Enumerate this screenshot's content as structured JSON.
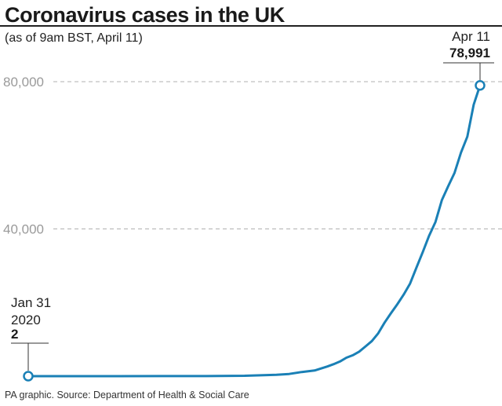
{
  "header": {
    "title": "Coronavirus cases in the UK",
    "subtitle": "(as of 9am BST, April 11)"
  },
  "footer": {
    "source": "PA graphic. Source: Department of Health & Social Care"
  },
  "annotations": {
    "start": {
      "date": "Jan 31",
      "year": "2020",
      "value": "2"
    },
    "end": {
      "date": "Apr 11",
      "value": "78,991"
    }
  },
  "colors": {
    "line": "#1a80b6",
    "grid": "#b0b0b0",
    "tick_text": "#9a9a9a"
  },
  "chart_data": {
    "type": "line",
    "title": "Coronavirus cases in the UK",
    "subtitle": "(as of 9am BST, April 11)",
    "xlabel": "",
    "ylabel": "",
    "ylim": [
      0,
      80000
    ],
    "yticks": [
      40000,
      80000
    ],
    "ytick_labels": [
      "40,000",
      "80,000"
    ],
    "grid": "horizontal dashed",
    "x_range": [
      "2020-01-31",
      "2020-04-11"
    ],
    "series": [
      {
        "x": [
          "2020-01-31",
          "2020-02-07",
          "2020-02-14",
          "2020-02-21",
          "2020-02-28",
          "2020-03-01",
          "2020-03-05",
          "2020-03-08",
          "2020-03-10",
          "2020-03-12",
          "2020-03-14",
          "2020-03-16",
          "2020-03-18",
          "2020-03-19",
          "2020-03-20",
          "2020-03-21",
          "2020-03-22",
          "2020-03-23",
          "2020-03-24",
          "2020-03-25",
          "2020-03-26",
          "2020-03-27",
          "2020-03-28",
          "2020-03-29",
          "2020-03-30",
          "2020-03-31",
          "2020-04-01",
          "2020-04-02",
          "2020-04-03",
          "2020-04-04",
          "2020-04-05",
          "2020-04-06",
          "2020-04-07",
          "2020-04-08",
          "2020-04-09",
          "2020-04-10",
          "2020-04-11"
        ],
        "values": [
          2,
          9,
          9,
          13,
          20,
          36,
          115,
          273,
          373,
          590,
          1140,
          1543,
          2626,
          3269,
          3983,
          5018,
          5683,
          6650,
          8077,
          9529,
          11658,
          14543,
          17089,
          19522,
          22141,
          25150,
          29474,
          33718,
          38168,
          41903,
          47806,
          51608,
          55242,
          60733,
          65077,
          73758,
          78991
        ]
      }
    ]
  }
}
